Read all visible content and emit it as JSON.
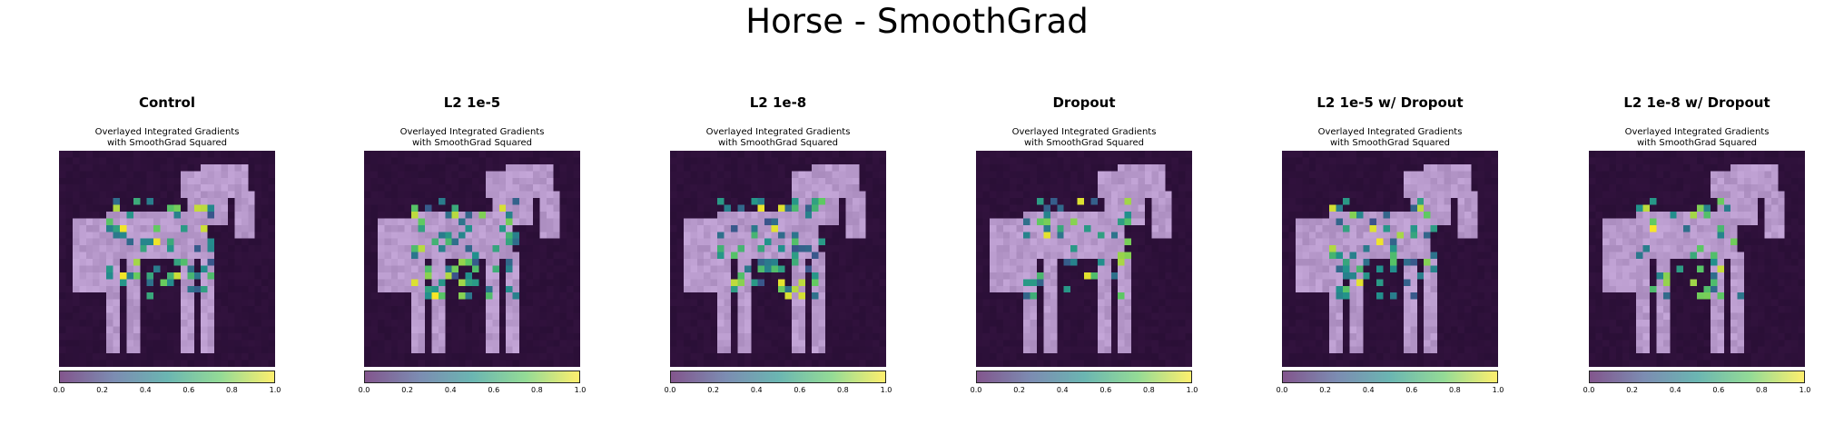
{
  "figure": {
    "title": "Horse - SmoothGrad"
  },
  "panels": [
    {
      "title": "Control",
      "subtitle_line1": "Overlayed Integrated Gradients",
      "subtitle_line2": "with SmoothGrad Squared"
    },
    {
      "title": "L2 1e-5",
      "subtitle_line1": "Overlayed Integrated Gradients",
      "subtitle_line2": "with SmoothGrad Squared"
    },
    {
      "title": "L2 1e-8",
      "subtitle_line1": "Overlayed Integrated Gradients",
      "subtitle_line2": "with SmoothGrad Squared"
    },
    {
      "title": "Dropout",
      "subtitle_line1": "Overlayed Integrated Gradients",
      "subtitle_line2": "with SmoothGrad Squared"
    },
    {
      "title": "L2 1e-5 w/ Dropout",
      "subtitle_line1": "Overlayed Integrated Gradients",
      "subtitle_line2": "with SmoothGrad Squared"
    },
    {
      "title": "L2 1e-8 w/ Dropout",
      "subtitle_line1": "Overlayed Integrated Gradients",
      "subtitle_line2": "with SmoothGrad Squared"
    }
  ],
  "colorbar": {
    "ticks": [
      "0.0",
      "0.2",
      "0.4",
      "0.6",
      "0.8",
      "1.0"
    ],
    "colormap_colors": [
      "#440154",
      "#3b528b",
      "#21918c",
      "#5ec962",
      "#fde725"
    ]
  }
}
